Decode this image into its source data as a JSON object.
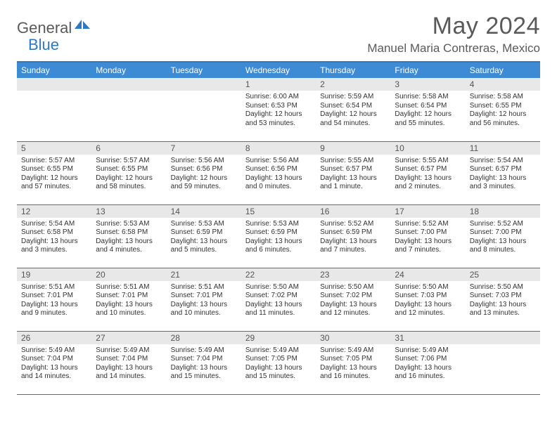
{
  "logo": {
    "part1": "General",
    "part2": "Blue"
  },
  "title": "May 2024",
  "location": "Manuel Maria Contreras, Mexico",
  "colors": {
    "header_bg": "#3c8bd4",
    "rule": "#2f78c2",
    "daynum_bg": "#e8e8e8",
    "text": "#333333",
    "muted": "#5a5a5a"
  },
  "weekdays": [
    "Sunday",
    "Monday",
    "Tuesday",
    "Wednesday",
    "Thursday",
    "Friday",
    "Saturday"
  ],
  "weeks": [
    [
      null,
      null,
      null,
      {
        "n": "1",
        "sr": "6:00 AM",
        "ss": "6:53 PM",
        "dl": "12 hours and 53 minutes."
      },
      {
        "n": "2",
        "sr": "5:59 AM",
        "ss": "6:54 PM",
        "dl": "12 hours and 54 minutes."
      },
      {
        "n": "3",
        "sr": "5:58 AM",
        "ss": "6:54 PM",
        "dl": "12 hours and 55 minutes."
      },
      {
        "n": "4",
        "sr": "5:58 AM",
        "ss": "6:55 PM",
        "dl": "12 hours and 56 minutes."
      }
    ],
    [
      {
        "n": "5",
        "sr": "5:57 AM",
        "ss": "6:55 PM",
        "dl": "12 hours and 57 minutes."
      },
      {
        "n": "6",
        "sr": "5:57 AM",
        "ss": "6:55 PM",
        "dl": "12 hours and 58 minutes."
      },
      {
        "n": "7",
        "sr": "5:56 AM",
        "ss": "6:56 PM",
        "dl": "12 hours and 59 minutes."
      },
      {
        "n": "8",
        "sr": "5:56 AM",
        "ss": "6:56 PM",
        "dl": "13 hours and 0 minutes."
      },
      {
        "n": "9",
        "sr": "5:55 AM",
        "ss": "6:57 PM",
        "dl": "13 hours and 1 minute."
      },
      {
        "n": "10",
        "sr": "5:55 AM",
        "ss": "6:57 PM",
        "dl": "13 hours and 2 minutes."
      },
      {
        "n": "11",
        "sr": "5:54 AM",
        "ss": "6:57 PM",
        "dl": "13 hours and 3 minutes."
      }
    ],
    [
      {
        "n": "12",
        "sr": "5:54 AM",
        "ss": "6:58 PM",
        "dl": "13 hours and 3 minutes."
      },
      {
        "n": "13",
        "sr": "5:53 AM",
        "ss": "6:58 PM",
        "dl": "13 hours and 4 minutes."
      },
      {
        "n": "14",
        "sr": "5:53 AM",
        "ss": "6:59 PM",
        "dl": "13 hours and 5 minutes."
      },
      {
        "n": "15",
        "sr": "5:53 AM",
        "ss": "6:59 PM",
        "dl": "13 hours and 6 minutes."
      },
      {
        "n": "16",
        "sr": "5:52 AM",
        "ss": "6:59 PM",
        "dl": "13 hours and 7 minutes."
      },
      {
        "n": "17",
        "sr": "5:52 AM",
        "ss": "7:00 PM",
        "dl": "13 hours and 7 minutes."
      },
      {
        "n": "18",
        "sr": "5:52 AM",
        "ss": "7:00 PM",
        "dl": "13 hours and 8 minutes."
      }
    ],
    [
      {
        "n": "19",
        "sr": "5:51 AM",
        "ss": "7:01 PM",
        "dl": "13 hours and 9 minutes."
      },
      {
        "n": "20",
        "sr": "5:51 AM",
        "ss": "7:01 PM",
        "dl": "13 hours and 10 minutes."
      },
      {
        "n": "21",
        "sr": "5:51 AM",
        "ss": "7:01 PM",
        "dl": "13 hours and 10 minutes."
      },
      {
        "n": "22",
        "sr": "5:50 AM",
        "ss": "7:02 PM",
        "dl": "13 hours and 11 minutes."
      },
      {
        "n": "23",
        "sr": "5:50 AM",
        "ss": "7:02 PM",
        "dl": "13 hours and 12 minutes."
      },
      {
        "n": "24",
        "sr": "5:50 AM",
        "ss": "7:03 PM",
        "dl": "13 hours and 12 minutes."
      },
      {
        "n": "25",
        "sr": "5:50 AM",
        "ss": "7:03 PM",
        "dl": "13 hours and 13 minutes."
      }
    ],
    [
      {
        "n": "26",
        "sr": "5:49 AM",
        "ss": "7:04 PM",
        "dl": "13 hours and 14 minutes."
      },
      {
        "n": "27",
        "sr": "5:49 AM",
        "ss": "7:04 PM",
        "dl": "13 hours and 14 minutes."
      },
      {
        "n": "28",
        "sr": "5:49 AM",
        "ss": "7:04 PM",
        "dl": "13 hours and 15 minutes."
      },
      {
        "n": "29",
        "sr": "5:49 AM",
        "ss": "7:05 PM",
        "dl": "13 hours and 15 minutes."
      },
      {
        "n": "30",
        "sr": "5:49 AM",
        "ss": "7:05 PM",
        "dl": "13 hours and 16 minutes."
      },
      {
        "n": "31",
        "sr": "5:49 AM",
        "ss": "7:06 PM",
        "dl": "13 hours and 16 minutes."
      },
      null
    ]
  ],
  "labels": {
    "sunrise": "Sunrise:",
    "sunset": "Sunset:",
    "daylight": "Daylight:"
  }
}
